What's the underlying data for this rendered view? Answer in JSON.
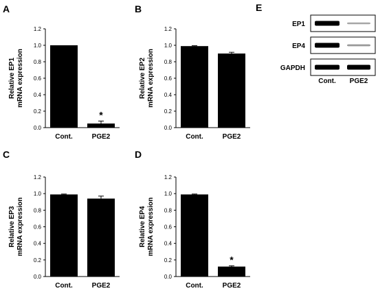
{
  "panels": {
    "A": "A",
    "B": "B",
    "C": "C",
    "D": "D",
    "E": "E"
  },
  "chart_data": [
    {
      "id": "A",
      "type": "bar",
      "categories": [
        "Cont.",
        "PGE2"
      ],
      "values": [
        1.0,
        0.05
      ],
      "errors": [
        0.0,
        0.03
      ],
      "annotations": [
        "",
        "*"
      ],
      "ylabel_line1": "Relative EP1",
      "ylabel_line2": "mRNA expression",
      "ylim": [
        0,
        1.2
      ],
      "yticks": [
        "0.0",
        "0.2",
        "0.4",
        "0.6",
        "0.8",
        "1.0",
        "1.2"
      ]
    },
    {
      "id": "B",
      "type": "bar",
      "categories": [
        "Cont.",
        "PGE2"
      ],
      "values": [
        0.99,
        0.9
      ],
      "errors": [
        0.005,
        0.015
      ],
      "annotations": [
        "",
        ""
      ],
      "ylabel_line1": "Relative EP2",
      "ylabel_line2": "mRNA expression",
      "ylim": [
        0,
        1.2
      ],
      "yticks": [
        "0.0",
        "0.2",
        "0.4",
        "0.6",
        "0.8",
        "1.0",
        "1.2"
      ]
    },
    {
      "id": "C",
      "type": "bar",
      "categories": [
        "Cont.",
        "PGE2"
      ],
      "values": [
        0.99,
        0.94
      ],
      "errors": [
        0.005,
        0.03
      ],
      "annotations": [
        "",
        ""
      ],
      "ylabel_line1": "Relative EP3",
      "ylabel_line2": "mRNA expression",
      "ylim": [
        0,
        1.2
      ],
      "yticks": [
        "0.0",
        "0.2",
        "0.4",
        "0.6",
        "0.8",
        "1.0",
        "1.2"
      ]
    },
    {
      "id": "D",
      "type": "bar",
      "categories": [
        "Cont.",
        "PGE2"
      ],
      "values": [
        0.99,
        0.12
      ],
      "errors": [
        0.005,
        0.01
      ],
      "annotations": [
        "",
        "*"
      ],
      "ylabel_line1": "Relative EP4",
      "ylabel_line2": "mRNA expression",
      "ylim": [
        0,
        1.2
      ],
      "yticks": [
        "0.0",
        "0.2",
        "0.4",
        "0.6",
        "0.8",
        "1.0",
        "1.2"
      ]
    }
  ],
  "blot": {
    "rows": [
      {
        "label": "EP1",
        "cont": 1.0,
        "pge2": 0.35
      },
      {
        "label": "EP4",
        "cont": 1.0,
        "pge2": 0.4
      },
      {
        "label": "GAPDH",
        "cont": 1.0,
        "pge2": 1.0
      }
    ],
    "lanes": [
      "Cont.",
      "PGE2"
    ]
  }
}
